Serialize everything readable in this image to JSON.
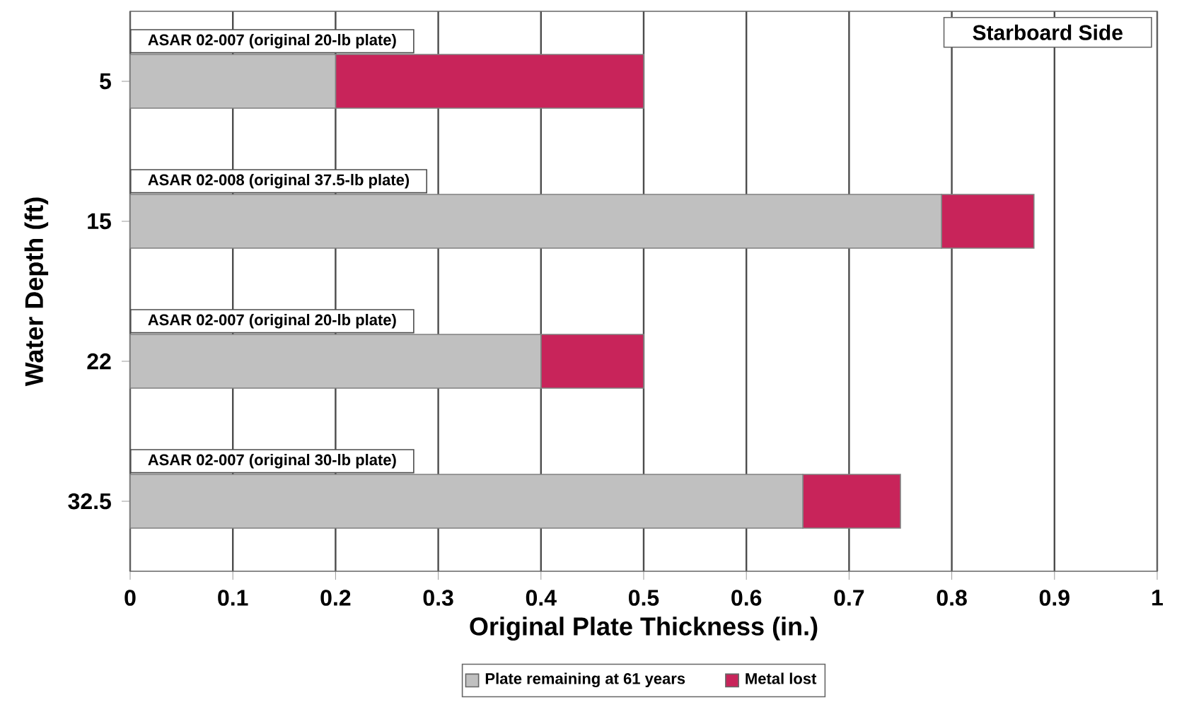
{
  "chart_data": {
    "type": "bar",
    "orientation": "horizontal",
    "stacked": true,
    "categories": [
      "5",
      "15",
      "22",
      "32.5"
    ],
    "series": [
      {
        "name": "Plate remaining at 61 years",
        "color": "#c0c0c0",
        "values": [
          0.2,
          0.79,
          0.4,
          0.655
        ]
      },
      {
        "name": "Metal lost",
        "color": "#c8245a",
        "values": [
          0.3,
          0.09,
          0.1,
          0.095
        ]
      }
    ],
    "xlabel": "Original Plate Thickness (in.)",
    "ylabel": "Water Depth (ft)",
    "xlim": [
      0,
      1
    ],
    "xticks": [
      0,
      0.1,
      0.2,
      0.3,
      0.4,
      0.5,
      0.6,
      0.7,
      0.8,
      0.9,
      1
    ],
    "grid": "x",
    "legend": "bottom",
    "annotations": [
      "ASAR 02-007 (original 20-lb plate)",
      "ASAR 02-008 (original 37.5-lb plate)",
      "ASAR 02-007 (original 20-lb plate)",
      "ASAR 02-007 (original 30-lb plate)",
      "Starboard Side"
    ]
  }
}
